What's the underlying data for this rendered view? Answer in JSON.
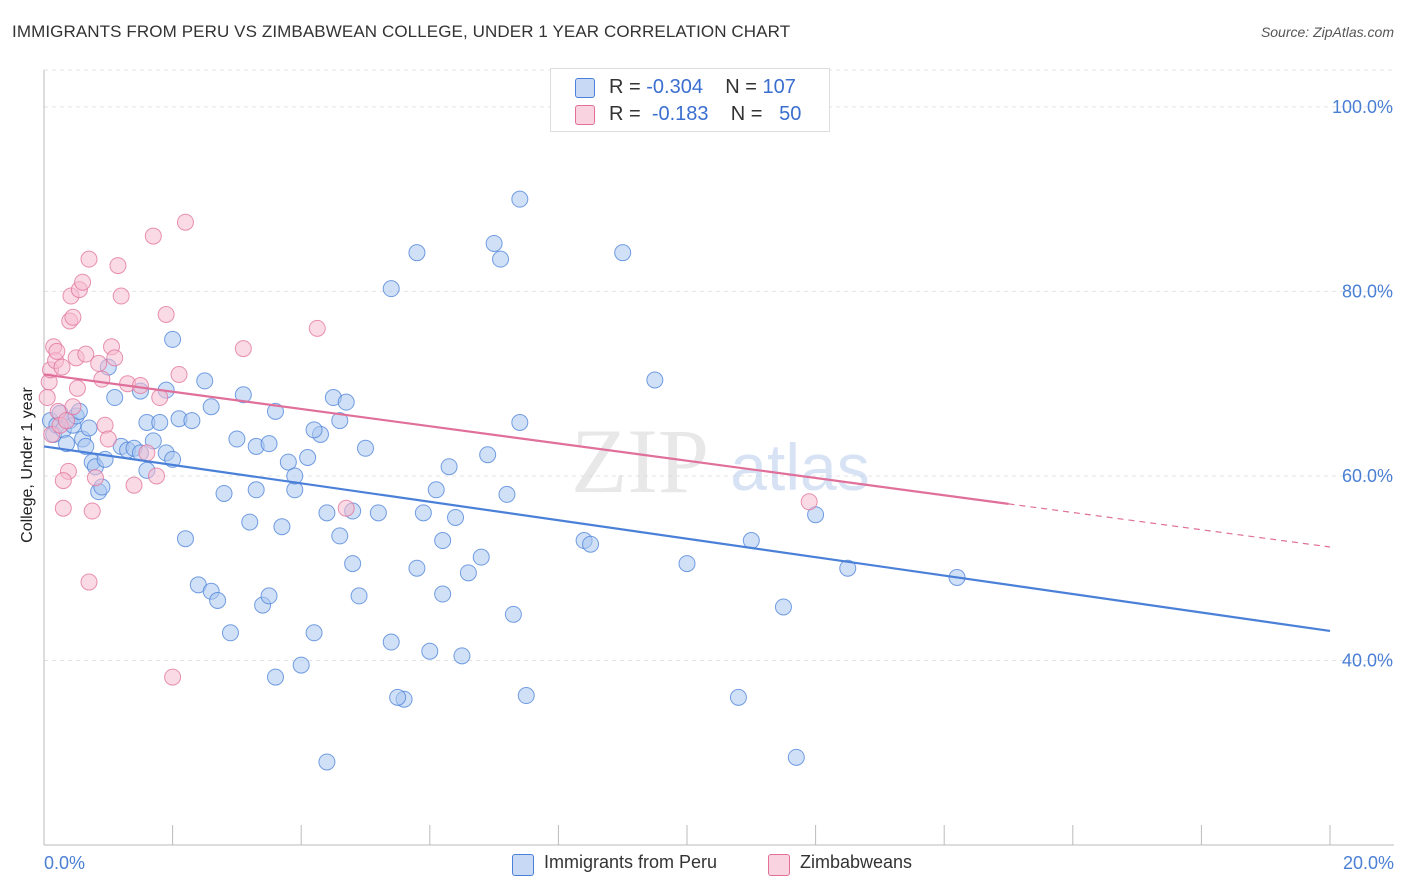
{
  "chart_data": {
    "type": "scatter",
    "title": "IMMIGRANTS FROM PERU VS ZIMBABWEAN COLLEGE, UNDER 1 YEAR CORRELATION CHART",
    "source": "Source: ZipAtlas.com",
    "xlabel": "",
    "ylabel": "College, Under 1 year",
    "xlim": [
      0,
      20
    ],
    "ylim": [
      20,
      104
    ],
    "x_tick_labels": [
      "0.0%",
      "20.0%"
    ],
    "y_ticks": [
      40,
      60,
      80,
      100
    ],
    "y_tick_labels": [
      "40.0%",
      "60.0%",
      "80.0%",
      "100.0%"
    ],
    "grid": true,
    "watermark": "ZIPatlas",
    "legend_top": [
      {
        "r_label": "R =",
        "r": "-0.304",
        "n_label": "N =",
        "n": "107"
      },
      {
        "r_label": "R =",
        "r": "-0.183",
        "n_label": "N =",
        "n": "50"
      }
    ],
    "series": [
      {
        "name": "Immigrants from Peru",
        "color": "#4a80d8",
        "fill": "#a9c6f0",
        "trend": {
          "x": [
            0,
            20
          ],
          "y": [
            63.2,
            43.2
          ],
          "dashed_from": null
        },
        "points": [
          [
            0.1,
            66
          ],
          [
            0.15,
            64.5
          ],
          [
            0.2,
            65.5
          ],
          [
            0.25,
            66.8
          ],
          [
            0.3,
            65
          ],
          [
            0.35,
            63.5
          ],
          [
            0.4,
            66
          ],
          [
            0.45,
            65.5
          ],
          [
            0.5,
            66.5
          ],
          [
            0.55,
            67
          ],
          [
            0.6,
            64
          ],
          [
            0.65,
            63.2
          ],
          [
            0.7,
            65.2
          ],
          [
            0.75,
            61.5
          ],
          [
            0.8,
            61
          ],
          [
            0.85,
            58.3
          ],
          [
            0.9,
            58.8
          ],
          [
            0.95,
            61.8
          ],
          [
            1.0,
            71.8
          ],
          [
            1.1,
            68.5
          ],
          [
            1.2,
            63.2
          ],
          [
            1.3,
            62.8
          ],
          [
            1.4,
            63
          ],
          [
            1.5,
            62.5
          ],
          [
            1.6,
            65.8
          ],
          [
            1.7,
            63.8
          ],
          [
            1.8,
            65.8
          ],
          [
            1.9,
            62.5
          ],
          [
            2.0,
            61.8
          ],
          [
            2.1,
            66.2
          ],
          [
            2.2,
            53.2
          ],
          [
            2.3,
            66
          ],
          [
            2.4,
            48.2
          ],
          [
            2.5,
            70.3
          ],
          [
            2.6,
            47.5
          ],
          [
            2.7,
            46.5
          ],
          [
            2.8,
            58.1
          ],
          [
            2.9,
            43
          ],
          [
            3.0,
            64
          ],
          [
            3.1,
            68.8
          ],
          [
            3.2,
            55
          ],
          [
            3.3,
            63.2
          ],
          [
            3.4,
            46
          ],
          [
            3.5,
            47
          ],
          [
            3.6,
            38.2
          ],
          [
            3.7,
            54.5
          ],
          [
            3.8,
            61.5
          ],
          [
            3.9,
            58.5
          ],
          [
            4.0,
            39.5
          ],
          [
            4.1,
            62
          ],
          [
            4.2,
            43
          ],
          [
            4.3,
            64.5
          ],
          [
            4.4,
            56
          ],
          [
            4.5,
            68.5
          ],
          [
            4.6,
            53.5
          ],
          [
            4.7,
            68
          ],
          [
            4.8,
            50.5
          ],
          [
            4.9,
            47
          ],
          [
            5.0,
            63
          ],
          [
            5.2,
            56
          ],
          [
            5.4,
            42
          ],
          [
            5.6,
            35.8
          ],
          [
            5.8,
            50
          ],
          [
            6.0,
            41
          ],
          [
            6.2,
            47.2
          ],
          [
            6.4,
            55.5
          ],
          [
            6.6,
            49.5
          ],
          [
            6.8,
            51.2
          ],
          [
            7.0,
            85.2
          ],
          [
            7.1,
            83.5
          ],
          [
            7.3,
            45
          ],
          [
            7.5,
            36.2
          ],
          [
            8.4,
            53
          ],
          [
            8.5,
            52.6
          ],
          [
            9.0,
            84.2
          ],
          [
            9.5,
            70.4
          ],
          [
            10.0,
            50.5
          ],
          [
            10.8,
            36
          ],
          [
            11.0,
            53
          ],
          [
            11.5,
            45.8
          ],
          [
            11.7,
            29.5
          ],
          [
            12.0,
            55.8
          ],
          [
            12.5,
            50
          ],
          [
            14.2,
            49
          ],
          [
            2.0,
            74.8
          ],
          [
            2.6,
            67.5
          ],
          [
            3.6,
            67
          ],
          [
            5.8,
            84.2
          ],
          [
            5.4,
            80.3
          ],
          [
            4.6,
            66
          ],
          [
            4.2,
            65
          ],
          [
            3.5,
            63.5
          ],
          [
            6.3,
            61
          ],
          [
            7.4,
            90
          ],
          [
            5.9,
            56
          ],
          [
            6.2,
            53
          ],
          [
            5.5,
            36
          ],
          [
            6.9,
            62.3
          ],
          [
            4.4,
            29
          ],
          [
            3.3,
            58.5
          ],
          [
            1.5,
            69.2
          ],
          [
            1.9,
            69.3
          ],
          [
            1.6,
            60.6
          ],
          [
            6.1,
            58.5
          ],
          [
            7.4,
            65.8
          ],
          [
            7.2,
            58
          ],
          [
            6.5,
            40.5
          ],
          [
            4.8,
            56.2
          ],
          [
            3.9,
            60
          ]
        ]
      },
      {
        "name": "Zimbabweans",
        "color": "#e0709a",
        "fill": "#f5bcd0",
        "trend": {
          "x": [
            0,
            20
          ],
          "y": [
            71,
            52.3
          ],
          "dashed_from": 15.0
        },
        "points": [
          [
            0.05,
            68.5
          ],
          [
            0.08,
            70.2
          ],
          [
            0.1,
            71.5
          ],
          [
            0.12,
            64.5
          ],
          [
            0.15,
            74
          ],
          [
            0.18,
            72.5
          ],
          [
            0.2,
            73.5
          ],
          [
            0.22,
            67
          ],
          [
            0.25,
            65.5
          ],
          [
            0.28,
            71.8
          ],
          [
            0.3,
            56.5
          ],
          [
            0.35,
            66
          ],
          [
            0.38,
            60.5
          ],
          [
            0.4,
            76.8
          ],
          [
            0.42,
            79.5
          ],
          [
            0.45,
            77.2
          ],
          [
            0.5,
            72.8
          ],
          [
            0.52,
            69.5
          ],
          [
            0.55,
            80.2
          ],
          [
            0.6,
            81
          ],
          [
            0.65,
            73.2
          ],
          [
            0.7,
            83.5
          ],
          [
            0.75,
            56.2
          ],
          [
            0.8,
            59.8
          ],
          [
            0.85,
            72.2
          ],
          [
            0.9,
            70.5
          ],
          [
            0.95,
            65.5
          ],
          [
            1.0,
            64
          ],
          [
            1.05,
            74
          ],
          [
            1.1,
            72.8
          ],
          [
            1.15,
            82.8
          ],
          [
            1.2,
            79.5
          ],
          [
            1.3,
            70
          ],
          [
            1.4,
            59
          ],
          [
            1.5,
            69.8
          ],
          [
            1.6,
            62.5
          ],
          [
            1.7,
            86
          ],
          [
            1.8,
            68.5
          ],
          [
            1.9,
            77.5
          ],
          [
            2.0,
            38.2
          ],
          [
            2.1,
            71
          ],
          [
            2.2,
            87.5
          ],
          [
            3.1,
            73.8
          ],
          [
            4.25,
            76
          ],
          [
            4.7,
            56.5
          ],
          [
            11.9,
            57.2
          ],
          [
            0.7,
            48.5
          ],
          [
            0.3,
            59.5
          ],
          [
            0.45,
            67.5
          ],
          [
            1.75,
            60
          ]
        ]
      }
    ]
  },
  "legend_bottom": [
    {
      "label": "Immigrants from Peru"
    },
    {
      "label": "Zimbabweans"
    }
  ]
}
